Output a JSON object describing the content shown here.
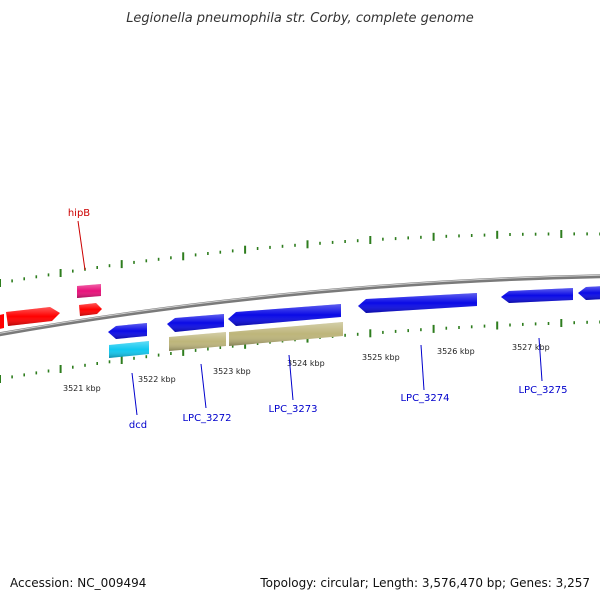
{
  "title": "Legionella pneumophila str. Corby, complete genome",
  "footer": {
    "accession": "Accession: NC_009494",
    "summary": "Topology: circular; Length: 3,576,470 bp; Genes: 3,257"
  },
  "colors": {
    "backbone": "#7a7a7a",
    "tick": "#2e7d1e",
    "forward_red": "#ff0000",
    "forward_pink": "#e8107a",
    "reverse_blue": "#0a0ae6",
    "reverse_cyan": "#10c8f0",
    "reverse_khaki": "#bdb57a",
    "label_red": "#cc0000",
    "label_blue": "#0000cc"
  },
  "scale_ticks": [
    {
      "label": "3521 kbp"
    },
    {
      "label": "3522 kbp"
    },
    {
      "label": "3523 kbp"
    },
    {
      "label": "3524 kbp"
    },
    {
      "label": "3525 kbp"
    },
    {
      "label": "3526 kbp"
    },
    {
      "label": "3527 kbp"
    }
  ],
  "gene_labels": [
    {
      "name": "hipB",
      "strand": "forward"
    },
    {
      "name": "dcd",
      "strand": "reverse"
    },
    {
      "name": "LPC_3272",
      "strand": "reverse"
    },
    {
      "name": "LPC_3273",
      "strand": "reverse"
    },
    {
      "name": "LPC_3274",
      "strand": "reverse"
    },
    {
      "name": "LPC_3275",
      "strand": "reverse"
    }
  ]
}
